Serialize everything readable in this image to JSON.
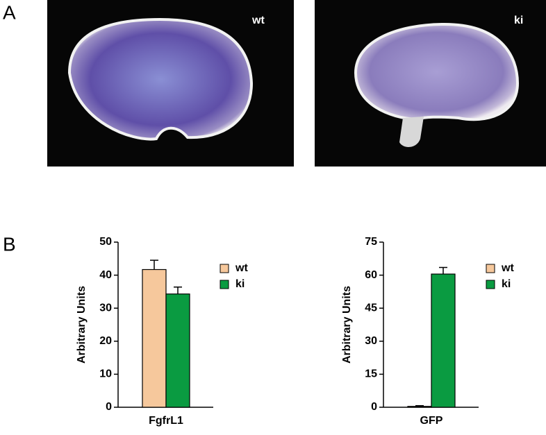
{
  "panels": {
    "a": {
      "label": "A",
      "images": [
        "wt",
        "ki"
      ]
    },
    "b": {
      "label": "B"
    }
  },
  "chart_data": [
    {
      "type": "bar",
      "ylabel": "Arbitrary Units",
      "categories": [
        "FgfrL1"
      ],
      "series": [
        {
          "name": "wt",
          "color": "#f6c89c",
          "values": [
            41.7
          ],
          "errors": [
            2.8
          ]
        },
        {
          "name": "ki",
          "color": "#0a9b41",
          "values": [
            34.3
          ],
          "errors": [
            2.1
          ]
        }
      ],
      "ylim": [
        0,
        50
      ],
      "yticks": [
        0,
        10,
        20,
        30,
        40,
        50
      ],
      "legend": "upper right"
    },
    {
      "type": "bar",
      "ylabel": "Arbitrary Units",
      "categories": [
        "GFP"
      ],
      "series": [
        {
          "name": "wt",
          "color": "#f6c89c",
          "values": [
            0.4
          ],
          "errors": [
            0.3
          ]
        },
        {
          "name": "ki",
          "color": "#0a9b41",
          "values": [
            60.5
          ],
          "errors": [
            3.0
          ]
        }
      ],
      "ylim": [
        0,
        75
      ],
      "yticks": [
        0,
        15,
        30,
        45,
        60,
        75
      ],
      "legend": "upper right"
    }
  ]
}
